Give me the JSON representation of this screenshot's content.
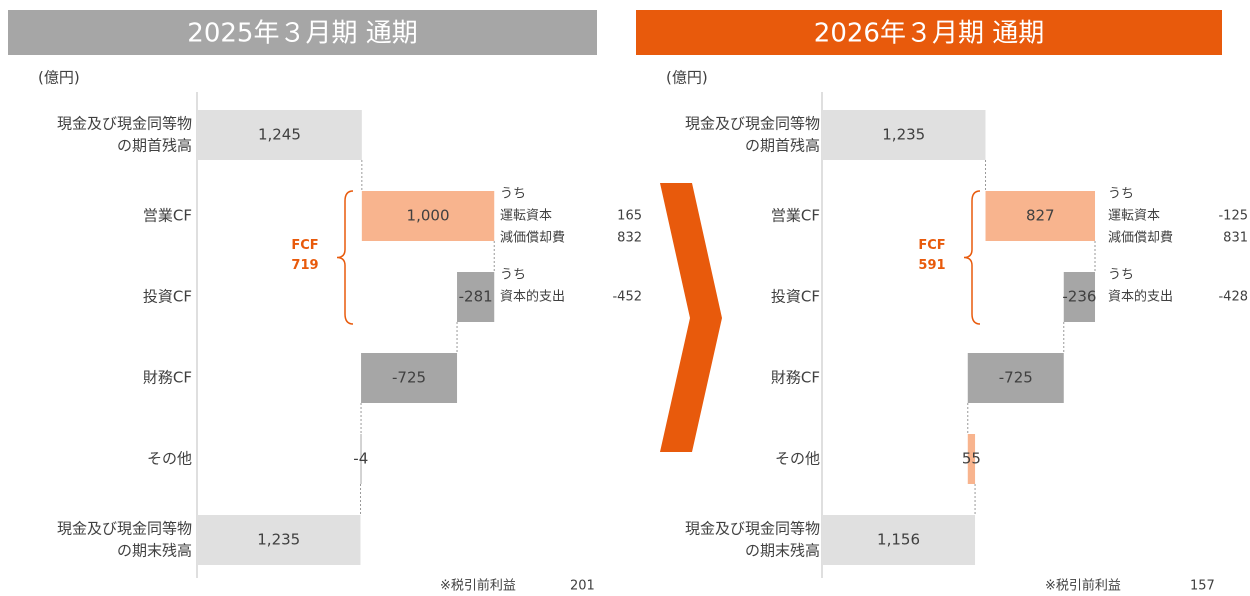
{
  "chart_data": [
    {
      "type": "waterfall",
      "title": "2025年３月期 通期",
      "title_color": "#a6a6a6",
      "unit": "(億円)",
      "categories": [
        [
          "現金及び現金同等物",
          "の期首残高"
        ],
        [
          "営業CF"
        ],
        [
          "投資CF"
        ],
        [
          "財務CF"
        ],
        [
          "その他"
        ],
        [
          "現金及び現金同等物",
          "の期末残高"
        ]
      ],
      "values": [
        1245,
        1000,
        -281,
        -725,
        -4,
        1235
      ],
      "value_labels": [
        "1,245",
        "1,000",
        "-281",
        "-725",
        "-4",
        "1,235"
      ],
      "totals": [
        0,
        5
      ],
      "colors": {
        "total": "#e0e0e0",
        "increase": "#f8b48e",
        "decrease": "#a6a6a6"
      },
      "xlim": [
        0,
        2500
      ],
      "breakdowns": [
        null,
        {
          "header": "うち",
          "items": [
            {
              "name": "運転資本",
              "value": 165
            },
            {
              "name": "減価償却費",
              "value": 832
            }
          ]
        },
        {
          "header": "うち",
          "items": [
            {
              "name": "資本的支出",
              "value": -452
            }
          ]
        },
        null,
        null,
        null
      ],
      "fcf": {
        "label": "FCF",
        "value": 719
      },
      "note": {
        "label": "※税引前利益",
        "value": 201
      }
    },
    {
      "type": "waterfall",
      "title": "2026年３月期 通期",
      "title_color": "#e85a0c",
      "unit": "(億円)",
      "categories": [
        [
          "現金及び現金同等物",
          "の期首残高"
        ],
        [
          "営業CF"
        ],
        [
          "投資CF"
        ],
        [
          "財務CF"
        ],
        [
          "その他"
        ],
        [
          "現金及び現金同等物",
          "の期末残高"
        ]
      ],
      "values": [
        1235,
        827,
        -236,
        -725,
        55,
        1156
      ],
      "value_labels": [
        "1,235",
        "827",
        "-236",
        "-725",
        "55",
        "1,156"
      ],
      "totals": [
        0,
        5
      ],
      "colors": {
        "total": "#e0e0e0",
        "increase": "#f8b48e",
        "decrease": "#a6a6a6"
      },
      "xlim": [
        0,
        2500
      ],
      "breakdowns": [
        null,
        {
          "header": "うち",
          "items": [
            {
              "name": "運転資本",
              "value": -125
            },
            {
              "name": "減価償却費",
              "value": 831
            }
          ]
        },
        {
          "header": "うち",
          "items": [
            {
              "name": "資本的支出",
              "value": -428
            }
          ]
        },
        null,
        null,
        null
      ],
      "fcf": {
        "label": "FCF",
        "value": 591
      },
      "note": {
        "label": "※税引前利益",
        "value": 157
      }
    }
  ]
}
